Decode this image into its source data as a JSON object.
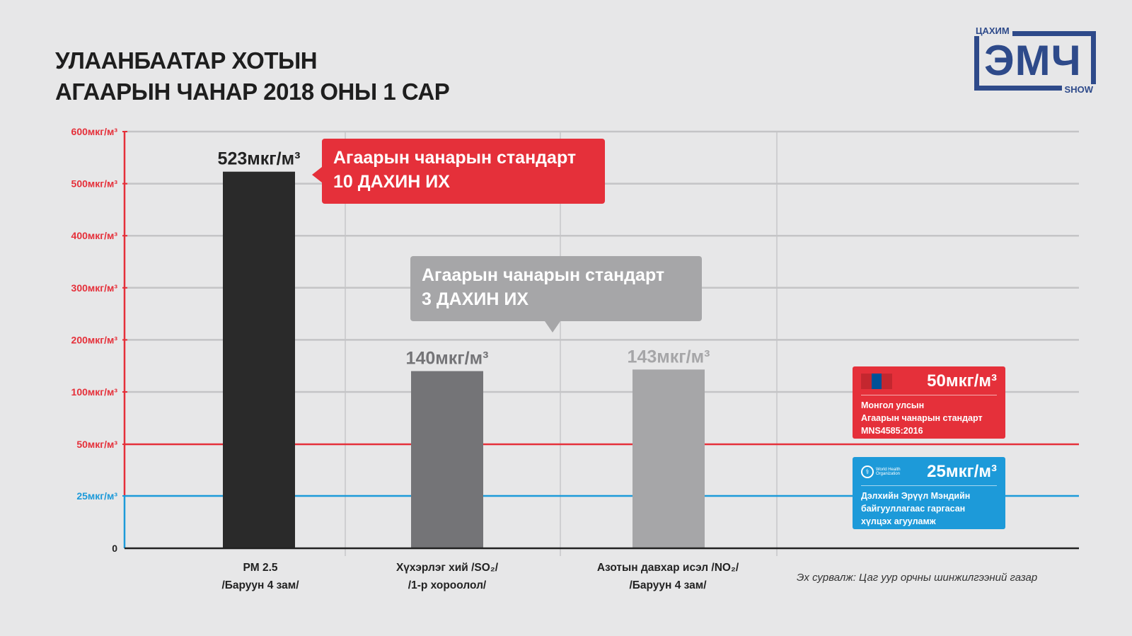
{
  "title": {
    "line1": "УЛААНБААТАР ХОТЫН",
    "line2": "АГААРЫН ЧАНАР 2018 ОНЫ 1 САР"
  },
  "logo": {
    "top": "ЦАХИМ",
    "main": "ЭМЧ",
    "bottom": "SHOW",
    "color": "#2e4a8a"
  },
  "callouts": {
    "red": {
      "line1": "Агаарын чанарын стандарт",
      "line2": "10 ДАХИН ИХ"
    },
    "gray": {
      "line1": "Агаарын чанарын стандарт",
      "line2": "3 ДАХИН ИХ"
    }
  },
  "standards": {
    "mongolia": {
      "value_label": "50мкг/м³",
      "desc1": "Монгол улсын",
      "desc2": "Агаарын чанарын стандарт",
      "desc3": "MNS4585:2016",
      "icon": "mongolia-flag-icon",
      "color": "#e5303a"
    },
    "who": {
      "value_label": "25мкг/м³",
      "logo_text": "World Health Organization",
      "desc1": "Дэлхийн Эрүүл Мэндийн",
      "desc2": "байгууллагаас гаргасан",
      "desc3": "хүлцэх агууламж",
      "icon": "who-logo-icon",
      "color": "#1d9ad9"
    }
  },
  "source": "Эх сурвалж: Цаг уур орчны шинжилгээний газар",
  "chart_data": {
    "type": "bar",
    "categories": [
      [
        "PM 2.5",
        "/Баруун 4 зам/"
      ],
      [
        "Хүхэрлэг хий /SO₂/",
        "/1-р хороолол/"
      ],
      [
        "Азотын давхар исэл /NO₂/",
        "/Баруун 4 зам/"
      ]
    ],
    "values": [
      523,
      140,
      143
    ],
    "value_labels": [
      "523мкг/м³",
      "140мкг/м³",
      "143мкг/м³"
    ],
    "bar_colors": [
      "#2a2a2a",
      "#747477",
      "#a6a6a8"
    ],
    "value_label_colors": [
      "#222222",
      "#747477",
      "#a6a6a8"
    ],
    "y_ticks": [
      {
        "value": 0,
        "label": "0"
      },
      {
        "value": 25,
        "label": "25мкг/м³"
      },
      {
        "value": 50,
        "label": "50мкг/м³"
      },
      {
        "value": 100,
        "label": "100мкг/м³"
      },
      {
        "value": 200,
        "label": "200мкг/м³"
      },
      {
        "value": 300,
        "label": "300мкг/м³"
      },
      {
        "value": 400,
        "label": "400мкг/м³"
      },
      {
        "value": 500,
        "label": "500мкг/м³"
      },
      {
        "value": 600,
        "label": "600мкг/м³"
      }
    ],
    "reference_lines": [
      {
        "value": 50,
        "color": "#e5303a"
      },
      {
        "value": 25,
        "color": "#1d9ad9"
      }
    ],
    "ylim": [
      0,
      600
    ],
    "grid": true,
    "accent_colors": {
      "axis_red": "#e5303a",
      "axis_blue": "#1d9ad9"
    }
  }
}
